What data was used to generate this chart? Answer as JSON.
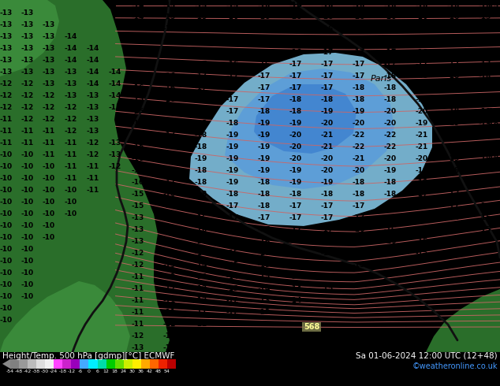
{
  "title_left": "Height/Temp. 500 hPa [gdmp][°C] ECMWF",
  "title_right": "Sa 01-06-2024 12:00 UTC (12+48)",
  "credit": "©weatheronline.co.uk",
  "sea_color": "#00d0e8",
  "land_dark": "#2a6e2a",
  "land_medium": "#3a8a3a",
  "land_light": "#4aaa4a",
  "blue_light": "#88ccee",
  "blue_medium": "#5599dd",
  "blue_dark": "#3377cc",
  "contour_black": "#000000",
  "contour_red": "#cc6666",
  "number_color": "#000000",
  "paris_label": "Paris",
  "label_color": "#000000",
  "fig_bg": "#000000",
  "bar_bg": "#111111",
  "figsize": [
    6.34,
    4.9
  ],
  "dpi": 100,
  "colorbar_colors": [
    "#808080",
    "#999999",
    "#bbbbbb",
    "#dddddd",
    "#f0f0f0",
    "#ff44ff",
    "#cc22cc",
    "#9900bb",
    "#44aaff",
    "#00eeff",
    "#00ddaa",
    "#00cc00",
    "#66dd00",
    "#ccee00",
    "#ffee00",
    "#ffaa00",
    "#ff6600",
    "#ee2200",
    "#bb0000"
  ],
  "colorbar_ticks": [
    "-54",
    "-48",
    "-42",
    "-38",
    "-30",
    "-24",
    "-18",
    "-12",
    "-6",
    "0",
    "6",
    "12",
    "18",
    "24",
    "30",
    "36",
    "42",
    "48",
    "54"
  ]
}
